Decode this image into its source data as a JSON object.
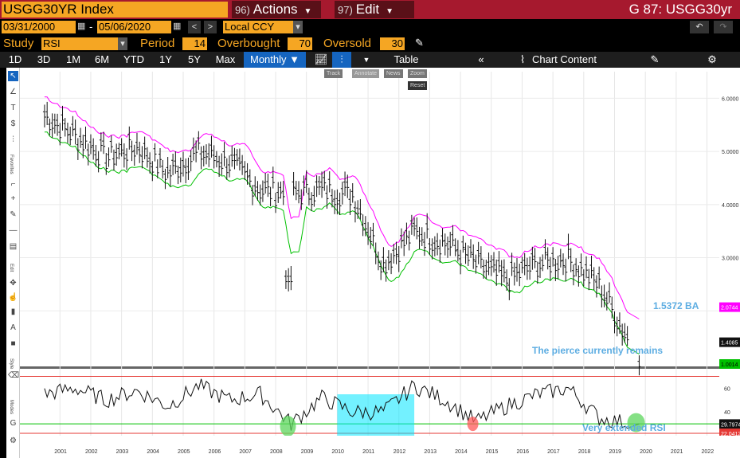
{
  "header": {
    "ticker": "USGG30YR Index",
    "actions": {
      "num": "96)",
      "label": "Actions"
    },
    "edit": {
      "num": "97)",
      "label": "Edit"
    },
    "right_title": "G 87: USGG30yr"
  },
  "dates": {
    "start": "03/31/2000",
    "end": "05/06/2020",
    "currency": "Local CCY"
  },
  "study": {
    "label": "Study",
    "value": "RSI",
    "period_label": "Period",
    "period": "14",
    "overbought_label": "Overbought",
    "overbought": "70",
    "oversold_label": "Oversold",
    "oversold": "30"
  },
  "toolbar": {
    "ranges": [
      "1D",
      "3D",
      "1M",
      "6M",
      "YTD",
      "1Y",
      "5Y",
      "Max"
    ],
    "frequency": "Monthly",
    "table": "Table",
    "chart_content": "Chart Content"
  },
  "mini_toolbar": {
    "track": "Track",
    "annotate": "Annotate",
    "news": "News",
    "zoom": "Zoom",
    "reset": "Reset"
  },
  "left_toolbar": {
    "favorites": "Favorites",
    "edit": "Edit",
    "style": "Style",
    "modes": "Modes"
  },
  "annotations": {
    "ba_label": "1.5372 BA",
    "pierce_text": "The pierce currently remains",
    "rsi_text": "Very extended RSI"
  },
  "colors": {
    "title_bar": "#a6192e",
    "accent_orange": "#f5a623",
    "upper_band": "#ff00ff",
    "lower_band": "#00c000",
    "highlight_box": "#00e5ff",
    "blue_note": "#5dade2"
  },
  "chart_data": [
    {
      "type": "line",
      "title": "",
      "x": [
        "2001",
        "2002",
        "2003",
        "2004",
        "2005",
        "2006",
        "2007",
        "2008",
        "2009",
        "2010",
        "2011",
        "2012",
        "2013",
        "2014",
        "2015",
        "2016",
        "2017",
        "2018",
        "2019",
        "2020"
      ],
      "series": [
        {
          "values": [
            5.7,
            5.3,
            4.9,
            5.1,
            4.6,
            5.0,
            4.8,
            4.3,
            4.2,
            4.3,
            4.2,
            2.9,
            3.5,
            3.3,
            2.9,
            2.6,
            2.9,
            3.0,
            2.5,
            1.41
          ]
        }
      ],
      "y_ticks": [
        "6.0000",
        "5.0000",
        "4.0000",
        "3.0000"
      ],
      "ylim": [
        1.0,
        6.5
      ],
      "price_labels": [
        "2.0744",
        "1.4085",
        "1.0014"
      ],
      "x_ticks": [
        "2001",
        "2002",
        "2003",
        "2004",
        "2005",
        "2006",
        "2007",
        "2008",
        "2009",
        "2010",
        "2011",
        "2012",
        "2013",
        "2014",
        "2015",
        "2016",
        "2017",
        "2018",
        "2019",
        "2020",
        "2021",
        "2022"
      ]
    },
    {
      "type": "line",
      "title": "",
      "series": [
        {
          "values": [
            55,
            60,
            50,
            58,
            45,
            62,
            50,
            55,
            30,
            52,
            40,
            40,
            62,
            50,
            32,
            45,
            55,
            60,
            35,
            30
          ]
        }
      ],
      "y_ticks": [
        "60",
        "40"
      ],
      "ylim": [
        20,
        75
      ],
      "price_labels": [
        "29.7974",
        "22.0412"
      ]
    }
  ]
}
